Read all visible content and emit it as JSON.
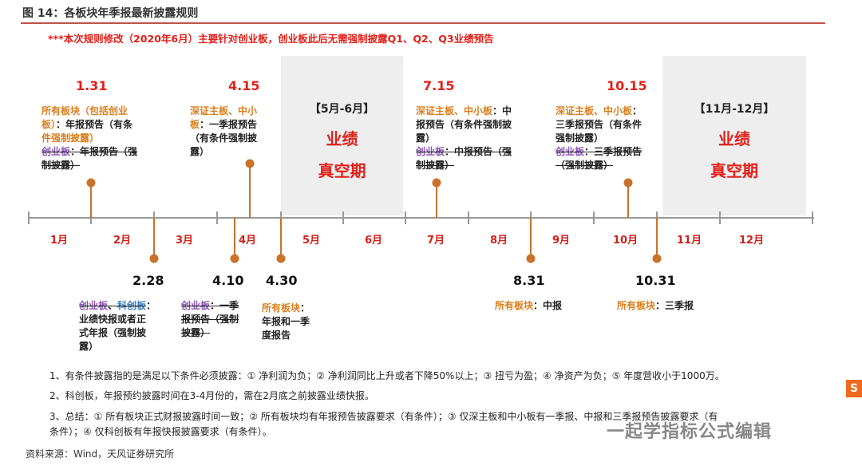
{
  "title": "图 14：各板块年季报最新披露规则",
  "banner": "***本次规则修改（2020年6月）主要针对创业板，创业板此后无需强制披露Q1、Q2、Q3业绩预告",
  "months": [
    "1月",
    "2月",
    "3月",
    "4月",
    "5月",
    "6月",
    "7月",
    "8月",
    "9月",
    "10月",
    "11月",
    "12月"
  ],
  "shades": [
    {
      "label": "【5月-6月】",
      "line1": "业绩",
      "line2": "真空期"
    },
    {
      "label": "【11月-12月】",
      "line1": "业绩",
      "line2": "真空期"
    }
  ],
  "events_top": [
    {
      "date": "1.31",
      "l1a": "所有板块（包括创业",
      "l2a": "板）",
      "l2b": "：年报预告（有条",
      "l3": "件强制披露）",
      "l4a": "创业板",
      "l4b": "：年报预告（强",
      "l5": "制披露）"
    },
    {
      "date": "4.15",
      "l1a": "深证主板、中小",
      "l2a": "板",
      "l2b": "：一季报预告",
      "l3": "（有条件强制披",
      "l4": "露）"
    },
    {
      "date": "7.15",
      "l1a": "深证主板、中小板",
      "l1b": "：中",
      "l2": "报预告（有条件强制披",
      "l3": "露）",
      "l4a": "创业板",
      "l4b": "：中报预告（强",
      "l5": "制披露）"
    },
    {
      "date": "10.15",
      "l1a": "深证主板、中小板",
      "l1b": "：",
      "l2": "三季报预告（有条件",
      "l3": "强制披露）",
      "l4a": "创业板",
      "l4b": "：三季报预告",
      "l5": "（强制披露）"
    }
  ],
  "events_bottom": [
    {
      "date": "2.28",
      "l1a": "创业板",
      "l1b": "、",
      "l1c": "科创板",
      "l1d": "：",
      "l2": "业绩快报或者正",
      "l3": "式年报（强制披",
      "l4": "露）"
    },
    {
      "date": "4.10",
      "l1a": "创业板",
      "l1b": "：一季",
      "l2": "报预告（强制",
      "l3": "披露）"
    },
    {
      "date": "4.30",
      "l1a": "所有板块",
      "l1b": "：",
      "l2": "年报和一季",
      "l3": "度报告"
    },
    {
      "date": "8.31",
      "l1a": "所有板块",
      "l1b": "：中报"
    },
    {
      "date": "10.31",
      "l1a": "所有板块",
      "l1b": "：三季报"
    }
  ],
  "footnotes": [
    "1、有条件披露指的是满足以下条件必须披露：① 净利润为负；② 净利润同比上升或者下降50%以上；③ 扭亏为盈；④ 净资产为负；⑤ 年度营收小于1000万。",
    "2、科创板，年报预约披露时间在3-4月份的，需在2月底之前披露业绩快报。",
    "3、总结：① 所有板块正式财报披露时间一致；② 所有板块均有年报预告披露要求（有条件）；③ 仅深主板和中小板有一季报、中报和三季报预告披露要求（有",
    "条件）；④ 仅科创板有年报快报披露要求（有条件）。"
  ],
  "source": "资料来源：Wind，天风证券研究所",
  "watermark": "一起学指标公式编辑",
  "watermark_icon": "S",
  "colors": {
    "accent_red": "#e0201a",
    "orange": "#d97d1a",
    "purple": "#8a57b8",
    "shade": "#eeeeee",
    "axis": "#999999",
    "pin": "#c8722a"
  }
}
